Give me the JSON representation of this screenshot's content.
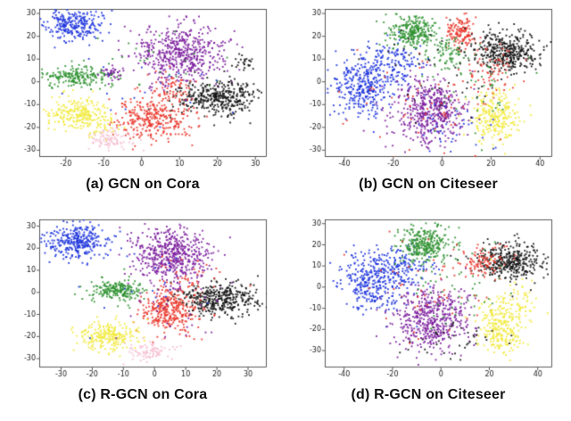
{
  "palette": {
    "blue": "#1f35dd",
    "green": "#2f9231",
    "purple": "#7d1f9e",
    "red": "#ea382c",
    "black": "#131313",
    "yellow": "#f3ea3e",
    "pink": "#f6c2d4"
  },
  "chart_data": [
    {
      "id": "a",
      "type": "scatter",
      "caption": "(a) GCN on Cora",
      "xlim": [
        -27,
        33
      ],
      "ylim": [
        -33,
        32
      ],
      "xticks": [
        -20,
        -10,
        0,
        10,
        20,
        30
      ],
      "yticks": [
        -30,
        -20,
        -10,
        0,
        10,
        20,
        30
      ],
      "seed": 11,
      "clusters": [
        {
          "color": "blue",
          "cx": -18,
          "cy": 25,
          "sx": 3.5,
          "sy": 3.5,
          "n": 260
        },
        {
          "color": "green",
          "cx": -17,
          "cy": 2.5,
          "sx": 4.5,
          "sy": 2.2,
          "n": 200
        },
        {
          "color": "purple",
          "cx": 10,
          "cy": 13,
          "sx": 6.0,
          "sy": 6.5,
          "n": 520
        },
        {
          "color": "purple",
          "cx": -8,
          "cy": 4,
          "sx": 1.5,
          "sy": 1.5,
          "n": 40
        },
        {
          "color": "black",
          "cx": 20,
          "cy": -7,
          "sx": 5.5,
          "sy": 4.0,
          "n": 380
        },
        {
          "color": "black",
          "cx": 27,
          "cy": 9,
          "sx": 1.5,
          "sy": 1.5,
          "n": 25
        },
        {
          "color": "red",
          "cx": 3,
          "cy": -16,
          "sx": 5.0,
          "sy": 5.0,
          "n": 320
        },
        {
          "color": "red",
          "cx": 8,
          "cy": -2,
          "sx": 3.0,
          "sy": 3.0,
          "n": 60
        },
        {
          "color": "yellow",
          "cx": -17,
          "cy": -14,
          "sx": 4.0,
          "sy": 3.5,
          "n": 230
        },
        {
          "color": "yellow",
          "cx": -10,
          "cy": -20,
          "sx": 3.5,
          "sy": 2.5,
          "n": 40
        },
        {
          "color": "pink",
          "cx": -8,
          "cy": -25,
          "sx": 3.0,
          "sy": 2.2,
          "n": 90
        },
        {
          "color": "green",
          "cx": 5,
          "cy": 8,
          "sx": 10,
          "sy": 8,
          "n": 25
        },
        {
          "color": "blue",
          "cx": 0,
          "cy": -5,
          "sx": 12,
          "sy": 10,
          "n": 20
        }
      ]
    },
    {
      "id": "b",
      "type": "scatter",
      "caption": "(b) GCN on Citeseer",
      "xlim": [
        -48,
        45
      ],
      "ylim": [
        -33,
        32
      ],
      "xticks": [
        -40,
        -20,
        0,
        20,
        40
      ],
      "yticks": [
        -30,
        -20,
        -10,
        0,
        10,
        20,
        30
      ],
      "seed": 22,
      "clusters": [
        {
          "color": "blue",
          "cx": -33,
          "cy": -2,
          "sx": 6.0,
          "sy": 6.0,
          "n": 320
        },
        {
          "color": "blue",
          "cx": -20,
          "cy": 8,
          "sx": 6.0,
          "sy": 5.0,
          "n": 150
        },
        {
          "color": "green",
          "cx": -12,
          "cy": 22,
          "sx": 5.0,
          "sy": 3.5,
          "n": 260
        },
        {
          "color": "red",
          "cx": 7,
          "cy": 22,
          "sx": 3.0,
          "sy": 3.5,
          "n": 130
        },
        {
          "color": "green",
          "cx": 3,
          "cy": 12,
          "sx": 4.0,
          "sy": 4.0,
          "n": 80
        },
        {
          "color": "black",
          "cx": 26,
          "cy": 13,
          "sx": 7.0,
          "sy": 4.5,
          "n": 380
        },
        {
          "color": "red",
          "cx": 20,
          "cy": 5,
          "sx": 6.0,
          "sy": 5.0,
          "n": 70
        },
        {
          "color": "yellow",
          "cx": 22,
          "cy": -15,
          "sx": 5.0,
          "sy": 5.5,
          "n": 260
        },
        {
          "color": "purple",
          "cx": -5,
          "cy": -13,
          "sx": 7.0,
          "sy": 7.0,
          "n": 480
        },
        {
          "color": "red",
          "cx": -5,
          "cy": -5,
          "sx": 15,
          "sy": 12,
          "n": 60
        },
        {
          "color": "blue",
          "cx": 5,
          "cy": -20,
          "sx": 10,
          "sy": 6,
          "n": 40
        },
        {
          "color": "green",
          "cx": 15,
          "cy": -5,
          "sx": 12,
          "sy": 10,
          "n": 40
        },
        {
          "color": "black",
          "cx": 0,
          "cy": 5,
          "sx": 14,
          "sy": 10,
          "n": 40
        }
      ]
    },
    {
      "id": "c",
      "type": "scatter",
      "caption": "(c) R-GCN on Cora",
      "xlim": [
        -37,
        36
      ],
      "ylim": [
        -34,
        33
      ],
      "xticks": [
        -30,
        -20,
        -10,
        0,
        10,
        20,
        30
      ],
      "yticks": [
        -30,
        -20,
        -10,
        0,
        10,
        20,
        30
      ],
      "seed": 33,
      "clusters": [
        {
          "color": "blue",
          "cx": -25,
          "cy": 23,
          "sx": 5.0,
          "sy": 4.0,
          "n": 320
        },
        {
          "color": "purple",
          "cx": 5,
          "cy": 17,
          "sx": 6.0,
          "sy": 6.0,
          "n": 520
        },
        {
          "color": "green",
          "cx": -12,
          "cy": 1,
          "sx": 4.0,
          "sy": 2.5,
          "n": 210
        },
        {
          "color": "red",
          "cx": 5,
          "cy": -8,
          "sx": 5.0,
          "sy": 5.0,
          "n": 330
        },
        {
          "color": "black",
          "cx": 21,
          "cy": -3,
          "sx": 6.0,
          "sy": 3.5,
          "n": 380
        },
        {
          "color": "yellow",
          "cx": -15,
          "cy": -20,
          "sx": 4.5,
          "sy": 3.5,
          "n": 240
        },
        {
          "color": "pink",
          "cx": -2,
          "cy": -27,
          "sx": 3.5,
          "sy": 2.2,
          "n": 90
        },
        {
          "color": "purple",
          "cx": 5,
          "cy": -5,
          "sx": 10,
          "sy": 8,
          "n": 40
        },
        {
          "color": "red",
          "cx": 10,
          "cy": 5,
          "sx": 6,
          "sy": 6,
          "n": 50
        },
        {
          "color": "blue",
          "cx": -5,
          "cy": 10,
          "sx": 12,
          "sy": 10,
          "n": 20
        }
      ]
    },
    {
      "id": "d",
      "type": "scatter",
      "caption": "(d) R-GCN on Citeseer",
      "xlim": [
        -48,
        46
      ],
      "ylim": [
        -38,
        32
      ],
      "xticks": [
        -40,
        -20,
        0,
        20,
        40
      ],
      "yticks": [
        -30,
        -20,
        -10,
        0,
        10,
        20,
        30
      ],
      "seed": 44,
      "clusters": [
        {
          "color": "blue",
          "cx": -28,
          "cy": 2,
          "sx": 7.0,
          "sy": 6.5,
          "n": 340
        },
        {
          "color": "blue",
          "cx": -15,
          "cy": 10,
          "sx": 6.0,
          "sy": 5.0,
          "n": 120
        },
        {
          "color": "green",
          "cx": -7,
          "cy": 20,
          "sx": 5.0,
          "sy": 4.5,
          "n": 300
        },
        {
          "color": "black",
          "cx": 28,
          "cy": 12,
          "sx": 7.0,
          "sy": 4.5,
          "n": 360
        },
        {
          "color": "red",
          "cx": 18,
          "cy": 12,
          "sx": 5.0,
          "sy": 4.0,
          "n": 90
        },
        {
          "color": "purple",
          "cx": -4,
          "cy": -15,
          "sx": 7.5,
          "sy": 7.5,
          "n": 500
        },
        {
          "color": "yellow",
          "cx": 25,
          "cy": -18,
          "sx": 5.0,
          "sy": 6.5,
          "n": 270
        },
        {
          "color": "yellow",
          "cx": 33,
          "cy": -5,
          "sx": 3.0,
          "sy": 4.0,
          "n": 40
        },
        {
          "color": "green",
          "cx": 5,
          "cy": 5,
          "sx": 12,
          "sy": 10,
          "n": 50
        },
        {
          "color": "red",
          "cx": -5,
          "cy": 0,
          "sx": 15,
          "sy": 12,
          "n": 60
        },
        {
          "color": "black",
          "cx": 5,
          "cy": -25,
          "sx": 12,
          "sy": 5,
          "n": 40
        }
      ]
    }
  ]
}
